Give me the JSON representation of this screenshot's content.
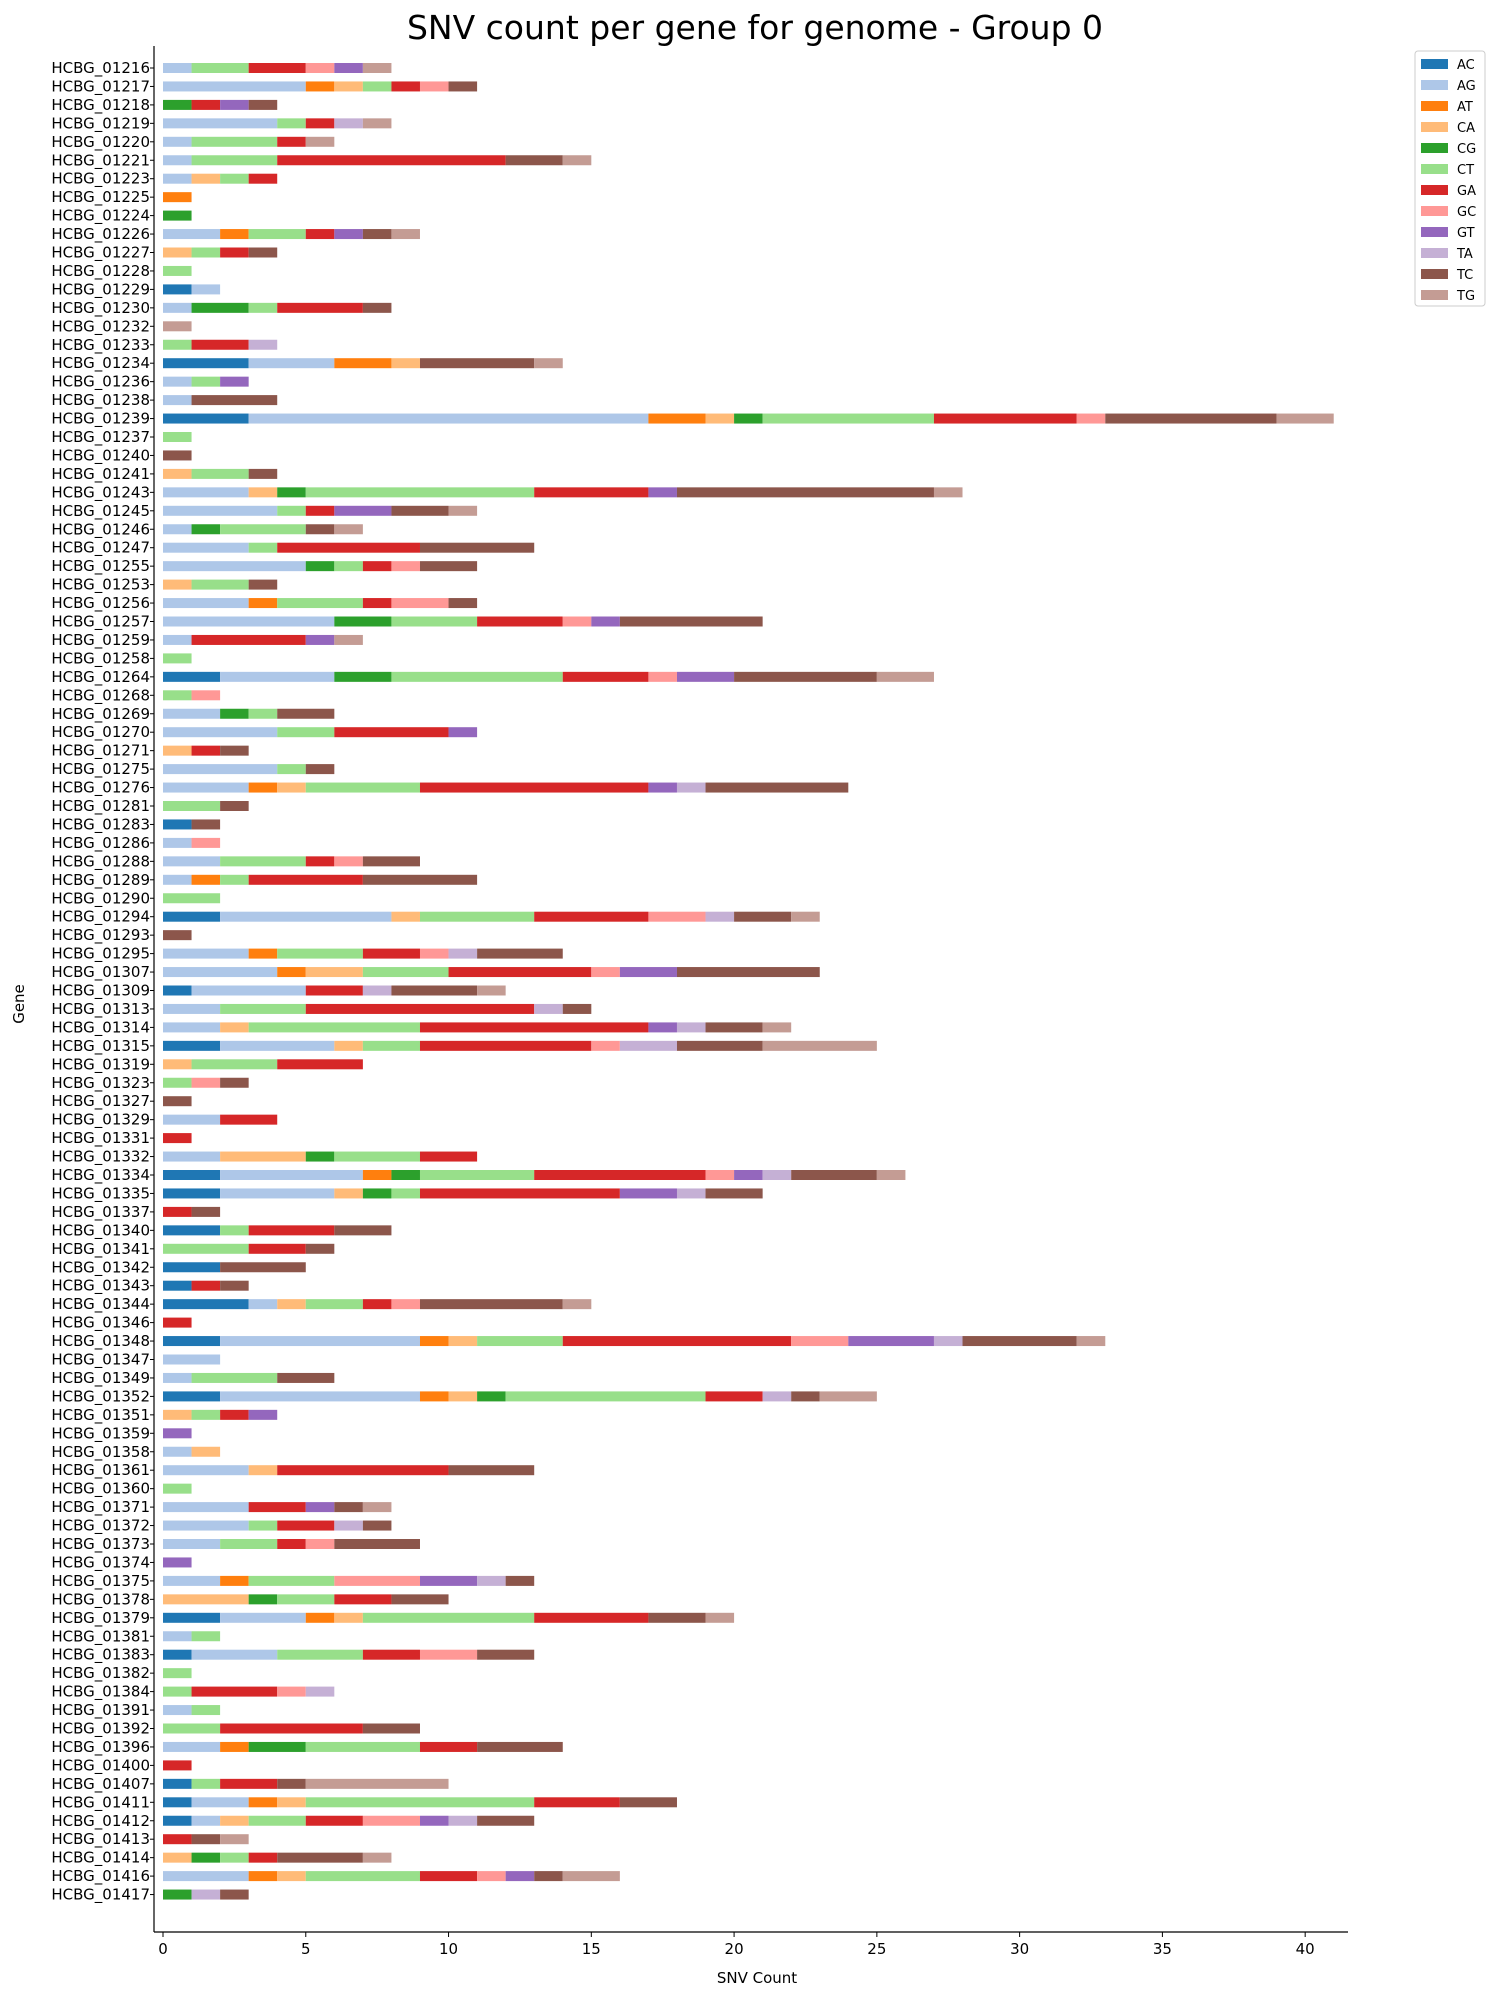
{
  "chart_data": {
    "type": "bar",
    "orientation": "horizontal",
    "stacked": true,
    "title": "SNV count per gene for genome - Group 0",
    "xlabel": "SNV Count",
    "ylabel": "Gene",
    "xlim": [
      0,
      41.5
    ],
    "xticks": [
      0,
      5,
      10,
      15,
      20,
      25,
      30,
      35,
      40
    ],
    "grid": false,
    "legend_position": "top-right",
    "series": [
      {
        "name": "AC",
        "color": "#1f77b4"
      },
      {
        "name": "AG",
        "color": "#aec7e8"
      },
      {
        "name": "AT",
        "color": "#ff7f0e"
      },
      {
        "name": "CA",
        "color": "#ffbb78"
      },
      {
        "name": "CG",
        "color": "#2ca02c"
      },
      {
        "name": "CT",
        "color": "#98df8a"
      },
      {
        "name": "GA",
        "color": "#d62728"
      },
      {
        "name": "GC",
        "color": "#ff9896"
      },
      {
        "name": "GT",
        "color": "#9467bd"
      },
      {
        "name": "TA",
        "color": "#c5b0d5"
      },
      {
        "name": "TC",
        "color": "#8c564b"
      },
      {
        "name": "TG",
        "color": "#c49c94"
      }
    ],
    "categories": [
      "HCBG_01216",
      "HCBG_01217",
      "HCBG_01218",
      "HCBG_01219",
      "HCBG_01220",
      "HCBG_01221",
      "HCBG_01223",
      "HCBG_01225",
      "HCBG_01224",
      "HCBG_01226",
      "HCBG_01227",
      "HCBG_01228",
      "HCBG_01229",
      "HCBG_01230",
      "HCBG_01232",
      "HCBG_01233",
      "HCBG_01234",
      "HCBG_01236",
      "HCBG_01238",
      "HCBG_01239",
      "HCBG_01237",
      "HCBG_01240",
      "HCBG_01241",
      "HCBG_01243",
      "HCBG_01245",
      "HCBG_01246",
      "HCBG_01247",
      "HCBG_01255",
      "HCBG_01253",
      "HCBG_01256",
      "HCBG_01257",
      "HCBG_01259",
      "HCBG_01258",
      "HCBG_01264",
      "HCBG_01268",
      "HCBG_01269",
      "HCBG_01270",
      "HCBG_01271",
      "HCBG_01275",
      "HCBG_01276",
      "HCBG_01281",
      "HCBG_01283",
      "HCBG_01286",
      "HCBG_01288",
      "HCBG_01289",
      "HCBG_01290",
      "HCBG_01294",
      "HCBG_01293",
      "HCBG_01295",
      "HCBG_01307",
      "HCBG_01309",
      "HCBG_01313",
      "HCBG_01314",
      "HCBG_01315",
      "HCBG_01319",
      "HCBG_01323",
      "HCBG_01327",
      "HCBG_01329",
      "HCBG_01331",
      "HCBG_01332",
      "HCBG_01334",
      "HCBG_01335",
      "HCBG_01337",
      "HCBG_01340",
      "HCBG_01341",
      "HCBG_01342",
      "HCBG_01343",
      "HCBG_01344",
      "HCBG_01346",
      "HCBG_01348",
      "HCBG_01347",
      "HCBG_01349",
      "HCBG_01352",
      "HCBG_01351",
      "HCBG_01359",
      "HCBG_01358",
      "HCBG_01361",
      "HCBG_01360",
      "HCBG_01371",
      "HCBG_01372",
      "HCBG_01373",
      "HCBG_01374",
      "HCBG_01375",
      "HCBG_01378",
      "HCBG_01379",
      "HCBG_01381",
      "HCBG_01383",
      "HCBG_01382",
      "HCBG_01384",
      "HCBG_01391",
      "HCBG_01392",
      "HCBG_01396",
      "HCBG_01400",
      "HCBG_01407",
      "HCBG_01411",
      "HCBG_01412",
      "HCBG_01413",
      "HCBG_01414",
      "HCBG_01416",
      "HCBG_01417"
    ],
    "values_order": [
      "AC",
      "AG",
      "AT",
      "CA",
      "CG",
      "CT",
      "GA",
      "GC",
      "GT",
      "TA",
      "TC",
      "TG"
    ],
    "values": [
      [
        0,
        1,
        0,
        0,
        0,
        2,
        2,
        1,
        1,
        0,
        0,
        1
      ],
      [
        0,
        5,
        1,
        1,
        0,
        1,
        1,
        1,
        0,
        0,
        1,
        0
      ],
      [
        0,
        0,
        0,
        0,
        1,
        0,
        1,
        0,
        1,
        0,
        1,
        0
      ],
      [
        0,
        4,
        0,
        0,
        0,
        1,
        1,
        0,
        0,
        1,
        0,
        1
      ],
      [
        0,
        1,
        0,
        0,
        0,
        3,
        1,
        0,
        0,
        0,
        0,
        1
      ],
      [
        0,
        1,
        0,
        0,
        0,
        3,
        8,
        0,
        0,
        0,
        2,
        1
      ],
      [
        0,
        1,
        0,
        1,
        0,
        1,
        1,
        0,
        0,
        0,
        0,
        0
      ],
      [
        0,
        0,
        1,
        0,
        0,
        0,
        0,
        0,
        0,
        0,
        0,
        0
      ],
      [
        0,
        0,
        0,
        0,
        1,
        0,
        0,
        0,
        0,
        0,
        0,
        0
      ],
      [
        0,
        2,
        1,
        0,
        0,
        2,
        1,
        0,
        1,
        0,
        1,
        1
      ],
      [
        0,
        0,
        0,
        1,
        0,
        1,
        1,
        0,
        0,
        0,
        1,
        0
      ],
      [
        0,
        0,
        0,
        0,
        0,
        1,
        0,
        0,
        0,
        0,
        0,
        0
      ],
      [
        1,
        1,
        0,
        0,
        0,
        0,
        0,
        0,
        0,
        0,
        0,
        0
      ],
      [
        0,
        1,
        0,
        0,
        2,
        1,
        3,
        0,
        0,
        0,
        1,
        0
      ],
      [
        0,
        0,
        0,
        0,
        0,
        0,
        0,
        0,
        0,
        0,
        0,
        1
      ],
      [
        0,
        0,
        0,
        0,
        0,
        1,
        2,
        0,
        0,
        1,
        0,
        0
      ],
      [
        3,
        3,
        2,
        1,
        0,
        0,
        0,
        0,
        0,
        0,
        4,
        1
      ],
      [
        0,
        1,
        0,
        0,
        0,
        1,
        0,
        0,
        1,
        0,
        0,
        0
      ],
      [
        0,
        1,
        0,
        0,
        0,
        0,
        0,
        0,
        0,
        0,
        3,
        0
      ],
      [
        3,
        14,
        2,
        1,
        1,
        6,
        5,
        1,
        0,
        0,
        6,
        2
      ],
      [
        0,
        0,
        0,
        0,
        0,
        1,
        0,
        0,
        0,
        0,
        0,
        0
      ],
      [
        0,
        0,
        0,
        0,
        0,
        0,
        0,
        0,
        0,
        0,
        1,
        0
      ],
      [
        0,
        0,
        0,
        1,
        0,
        2,
        0,
        0,
        0,
        0,
        1,
        0
      ],
      [
        0,
        3,
        0,
        1,
        1,
        8,
        4,
        0,
        1,
        0,
        9,
        1
      ],
      [
        0,
        4,
        0,
        0,
        0,
        1,
        1,
        0,
        2,
        0,
        2,
        1
      ],
      [
        0,
        1,
        0,
        0,
        1,
        3,
        0,
        0,
        0,
        0,
        1,
        1
      ],
      [
        0,
        3,
        0,
        0,
        0,
        1,
        5,
        0,
        0,
        0,
        4,
        0
      ],
      [
        0,
        5,
        0,
        0,
        1,
        1,
        1,
        1,
        0,
        0,
        2,
        0
      ],
      [
        0,
        0,
        0,
        1,
        0,
        2,
        0,
        0,
        0,
        0,
        1,
        0
      ],
      [
        0,
        3,
        1,
        0,
        0,
        3,
        1,
        2,
        0,
        0,
        1,
        0
      ],
      [
        0,
        6,
        0,
        0,
        2,
        3,
        3,
        1,
        1,
        0,
        5,
        0
      ],
      [
        0,
        1,
        0,
        0,
        0,
        0,
        4,
        0,
        1,
        0,
        0,
        1
      ],
      [
        0,
        0,
        0,
        0,
        0,
        1,
        0,
        0,
        0,
        0,
        0,
        0
      ],
      [
        2,
        4,
        0,
        0,
        2,
        6,
        3,
        1,
        2,
        0,
        5,
        2
      ],
      [
        0,
        0,
        0,
        0,
        0,
        1,
        0,
        1,
        0,
        0,
        0,
        0
      ],
      [
        0,
        2,
        0,
        0,
        1,
        1,
        0,
        0,
        0,
        0,
        2,
        0
      ],
      [
        0,
        4,
        0,
        0,
        0,
        2,
        4,
        0,
        1,
        0,
        0,
        0
      ],
      [
        0,
        0,
        0,
        1,
        0,
        0,
        1,
        0,
        0,
        0,
        1,
        0
      ],
      [
        0,
        4,
        0,
        0,
        0,
        1,
        0,
        0,
        0,
        0,
        1,
        0
      ],
      [
        0,
        3,
        1,
        1,
        0,
        4,
        8,
        0,
        1,
        1,
        5,
        0
      ],
      [
        0,
        0,
        0,
        0,
        0,
        2,
        0,
        0,
        0,
        0,
        1,
        0
      ],
      [
        1,
        0,
        0,
        0,
        0,
        0,
        0,
        0,
        0,
        0,
        1,
        0
      ],
      [
        0,
        1,
        0,
        0,
        0,
        0,
        0,
        1,
        0,
        0,
        0,
        0
      ],
      [
        0,
        2,
        0,
        0,
        0,
        3,
        1,
        1,
        0,
        0,
        2,
        0
      ],
      [
        0,
        1,
        1,
        0,
        0,
        1,
        4,
        0,
        0,
        0,
        4,
        0
      ],
      [
        0,
        0,
        0,
        0,
        0,
        2,
        0,
        0,
        0,
        0,
        0,
        0
      ],
      [
        2,
        6,
        0,
        1,
        0,
        4,
        4,
        2,
        0,
        1,
        2,
        1
      ],
      [
        0,
        0,
        0,
        0,
        0,
        0,
        0,
        0,
        0,
        0,
        1,
        0
      ],
      [
        0,
        3,
        1,
        0,
        0,
        3,
        2,
        1,
        0,
        1,
        3,
        0
      ],
      [
        0,
        4,
        1,
        2,
        0,
        3,
        5,
        1,
        2,
        0,
        5,
        0
      ],
      [
        1,
        4,
        0,
        0,
        0,
        0,
        2,
        0,
        0,
        1,
        3,
        1
      ],
      [
        0,
        2,
        0,
        0,
        0,
        3,
        8,
        0,
        0,
        1,
        1,
        0
      ],
      [
        0,
        2,
        0,
        1,
        0,
        6,
        8,
        0,
        1,
        1,
        2,
        1
      ],
      [
        2,
        4,
        0,
        1,
        0,
        2,
        6,
        1,
        0,
        2,
        3,
        4
      ],
      [
        0,
        0,
        0,
        1,
        0,
        3,
        3,
        0,
        0,
        0,
        0,
        0
      ],
      [
        0,
        0,
        0,
        0,
        0,
        1,
        0,
        1,
        0,
        0,
        1,
        0
      ],
      [
        0,
        0,
        0,
        0,
        0,
        0,
        0,
        0,
        0,
        0,
        1,
        0
      ],
      [
        0,
        2,
        0,
        0,
        0,
        0,
        2,
        0,
        0,
        0,
        0,
        0
      ],
      [
        0,
        0,
        0,
        0,
        0,
        0,
        1,
        0,
        0,
        0,
        0,
        0
      ],
      [
        0,
        2,
        0,
        3,
        1,
        3,
        2,
        0,
        0,
        0,
        0,
        0
      ],
      [
        2,
        5,
        1,
        0,
        1,
        4,
        6,
        1,
        1,
        1,
        3,
        1
      ],
      [
        2,
        4,
        0,
        1,
        1,
        1,
        7,
        0,
        2,
        1,
        2,
        0
      ],
      [
        0,
        0,
        0,
        0,
        0,
        0,
        1,
        0,
        0,
        0,
        1,
        0
      ],
      [
        2,
        0,
        0,
        0,
        0,
        1,
        3,
        0,
        0,
        0,
        2,
        0
      ],
      [
        0,
        0,
        0,
        0,
        0,
        3,
        2,
        0,
        0,
        0,
        1,
        0
      ],
      [
        2,
        0,
        0,
        0,
        0,
        0,
        0,
        0,
        0,
        0,
        3,
        0
      ],
      [
        1,
        0,
        0,
        0,
        0,
        0,
        1,
        0,
        0,
        0,
        1,
        0
      ],
      [
        3,
        1,
        0,
        1,
        0,
        2,
        1,
        1,
        0,
        0,
        5,
        1
      ],
      [
        0,
        0,
        0,
        0,
        0,
        0,
        1,
        0,
        0,
        0,
        0,
        0
      ],
      [
        2,
        7,
        1,
        1,
        0,
        3,
        8,
        2,
        3,
        1,
        4,
        1
      ],
      [
        0,
        2,
        0,
        0,
        0,
        0,
        0,
        0,
        0,
        0,
        0,
        0
      ],
      [
        0,
        1,
        0,
        0,
        0,
        3,
        0,
        0,
        0,
        0,
        2,
        0
      ],
      [
        2,
        7,
        1,
        1,
        1,
        7,
        2,
        0,
        0,
        1,
        1,
        2
      ],
      [
        0,
        0,
        0,
        1,
        0,
        1,
        1,
        0,
        1,
        0,
        0,
        0
      ],
      [
        0,
        0,
        0,
        0,
        0,
        0,
        0,
        0,
        1,
        0,
        0,
        0
      ],
      [
        0,
        1,
        0,
        1,
        0,
        0,
        0,
        0,
        0,
        0,
        0,
        0
      ],
      [
        0,
        3,
        0,
        1,
        0,
        0,
        6,
        0,
        0,
        0,
        3,
        0
      ],
      [
        0,
        0,
        0,
        0,
        0,
        1,
        0,
        0,
        0,
        0,
        0,
        0
      ],
      [
        0,
        3,
        0,
        0,
        0,
        0,
        2,
        0,
        1,
        0,
        1,
        1
      ],
      [
        0,
        3,
        0,
        0,
        0,
        1,
        2,
        0,
        0,
        1,
        1,
        0
      ],
      [
        0,
        2,
        0,
        0,
        0,
        2,
        1,
        1,
        0,
        0,
        3,
        0
      ],
      [
        0,
        0,
        0,
        0,
        0,
        0,
        0,
        0,
        1,
        0,
        0,
        0
      ],
      [
        0,
        2,
        1,
        0,
        0,
        3,
        0,
        3,
        2,
        1,
        1,
        0
      ],
      [
        0,
        0,
        0,
        3,
        1,
        2,
        2,
        0,
        0,
        0,
        2,
        0
      ],
      [
        2,
        3,
        1,
        1,
        0,
        6,
        4,
        0,
        0,
        0,
        2,
        1
      ],
      [
        0,
        1,
        0,
        0,
        0,
        1,
        0,
        0,
        0,
        0,
        0,
        0
      ],
      [
        1,
        3,
        0,
        0,
        0,
        3,
        2,
        2,
        0,
        0,
        2,
        0
      ],
      [
        0,
        0,
        0,
        0,
        0,
        1,
        0,
        0,
        0,
        0,
        0,
        0
      ],
      [
        0,
        0,
        0,
        0,
        0,
        1,
        3,
        1,
        0,
        1,
        0,
        0
      ],
      [
        0,
        1,
        0,
        0,
        0,
        1,
        0,
        0,
        0,
        0,
        0,
        0
      ],
      [
        0,
        0,
        0,
        0,
        0,
        2,
        5,
        0,
        0,
        0,
        2,
        0
      ],
      [
        0,
        2,
        1,
        0,
        2,
        4,
        2,
        0,
        0,
        0,
        3,
        0
      ],
      [
        0,
        0,
        0,
        0,
        0,
        0,
        1,
        0,
        0,
        0,
        0,
        0
      ],
      [
        1,
        0,
        0,
        0,
        0,
        1,
        2,
        0,
        0,
        0,
        1,
        5
      ],
      [
        1,
        2,
        1,
        1,
        0,
        8,
        3,
        0,
        0,
        0,
        2,
        0
      ],
      [
        1,
        1,
        0,
        1,
        0,
        2,
        2,
        2,
        1,
        1,
        2,
        0
      ],
      [
        0,
        0,
        0,
        0,
        0,
        0,
        1,
        0,
        0,
        0,
        1,
        1
      ],
      [
        0,
        0,
        0,
        1,
        1,
        1,
        1,
        0,
        0,
        0,
        3,
        1
      ],
      [
        0,
        3,
        1,
        1,
        0,
        4,
        2,
        1,
        1,
        0,
        1,
        2
      ],
      [
        0,
        0,
        0,
        0,
        1,
        0,
        0,
        0,
        0,
        1,
        1,
        0
      ]
    ]
  }
}
